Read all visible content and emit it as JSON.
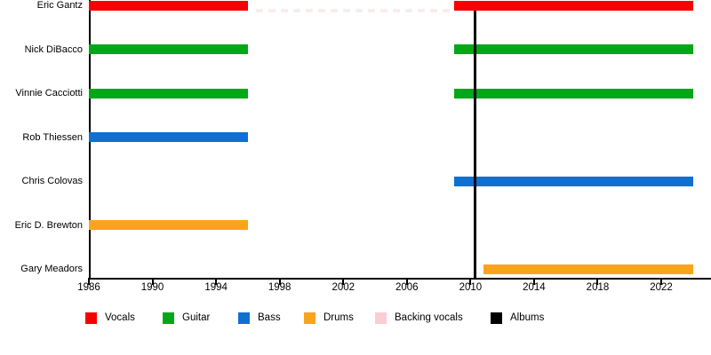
{
  "chart_data": {
    "type": "timeline",
    "title": "",
    "x_axis": {
      "start": 1986,
      "end": 2025,
      "ticks": [
        1986,
        1990,
        1994,
        1998,
        2002,
        2006,
        2010,
        2014,
        2018,
        2022
      ]
    },
    "members": [
      {
        "name": "Eric Gantz",
        "role": "Vocals",
        "color_key": "vocals",
        "spans": [
          [
            1986,
            1996
          ],
          [
            2009,
            2024
          ]
        ],
        "gap_dashes": {
          "from": 1996.5,
          "to": 2008.85,
          "color": "#f8edee"
        }
      },
      {
        "name": "Nick DiBacco",
        "role": "Guitar",
        "color_key": "guitar",
        "spans": [
          [
            1986,
            1996
          ],
          [
            2009,
            2024
          ]
        ]
      },
      {
        "name": "Vinnie Cacciotti",
        "role": "Guitar",
        "color_key": "guitar",
        "spans": [
          [
            1986,
            1996
          ],
          [
            2009,
            2024
          ]
        ]
      },
      {
        "name": "Rob Thiessen",
        "role": "Bass",
        "color_key": "bass",
        "spans": [
          [
            1986,
            1996
          ]
        ]
      },
      {
        "name": "Chris Colovas",
        "role": "Bass",
        "color_key": "bass",
        "spans": [
          [
            2009,
            2024
          ]
        ]
      },
      {
        "name": "Eric D. Brewton",
        "role": "Drums",
        "color_key": "drums",
        "spans": [
          [
            1986,
            1996
          ]
        ]
      },
      {
        "name": "Gary Meadors",
        "role": "Drums",
        "color_key": "drums",
        "spans": [
          [
            2010.8,
            2024
          ]
        ]
      }
    ],
    "album_lines": [
      {
        "year": 2010.3
      }
    ],
    "colors": {
      "vocals": "#f80000",
      "guitar": "#00a819",
      "bass": "#1070d0",
      "drums": "#faa41e",
      "backing_vocals": "#facdd3",
      "albums": "#000000"
    },
    "legend": [
      {
        "key": "vocals",
        "label": "Vocals"
      },
      {
        "key": "guitar",
        "label": "Guitar"
      },
      {
        "key": "bass",
        "label": "Bass"
      },
      {
        "key": "drums",
        "label": "Drums"
      },
      {
        "key": "backing_vocals",
        "label": "Backing vocals"
      },
      {
        "key": "albums",
        "label": "Albums"
      }
    ],
    "legend_position": "bottom",
    "grid": false
  }
}
